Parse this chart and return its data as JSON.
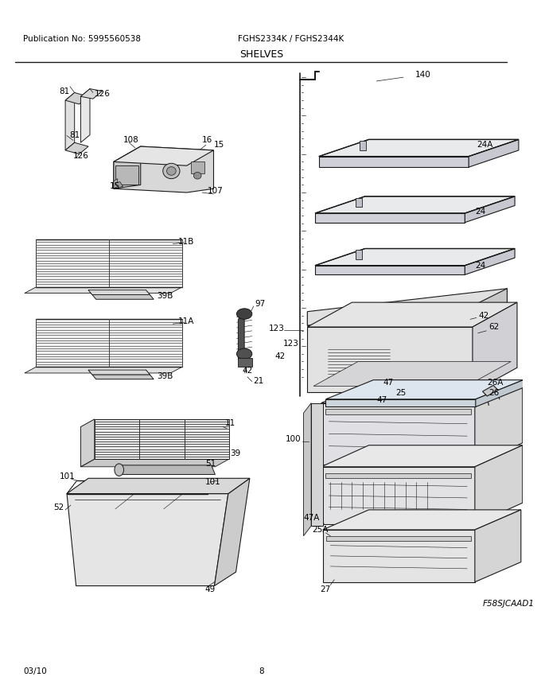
{
  "pub_no": "Publication No: 5995560538",
  "model": "FGHS2334K / FGHS2344K",
  "section": "SHELVES",
  "date": "03/10",
  "page": "8",
  "fig_code": "F58SJCAAD1",
  "bg_color": "#ffffff",
  "line_color": "#000000",
  "text_color": "#000000"
}
